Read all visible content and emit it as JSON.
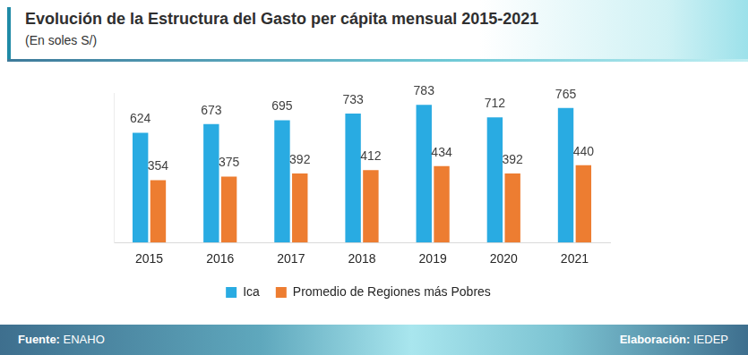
{
  "chart_data": {
    "type": "bar",
    "title": "Evolución de la Estructura del Gasto per cápita mensual 2015-2021",
    "subtitle": "(En soles S/)",
    "categories": [
      "2015",
      "2016",
      "2017",
      "2018",
      "2019",
      "2020",
      "2021"
    ],
    "series": [
      {
        "name": "Ica",
        "color": "#29abe2",
        "values": [
          624,
          673,
          695,
          733,
          783,
          712,
          765
        ]
      },
      {
        "name": "Promedio de Regiones más Pobres",
        "color": "#ed7d31",
        "values": [
          354,
          375,
          392,
          412,
          434,
          392,
          440
        ]
      }
    ],
    "ylim": [
      0,
      850
    ],
    "grid": false,
    "legend": "bottom",
    "data_labels": true,
    "tick_labels": "x",
    "annotations": [
      "Fuente: ENAHO",
      "Elaboración: IEDEP"
    ]
  }
}
